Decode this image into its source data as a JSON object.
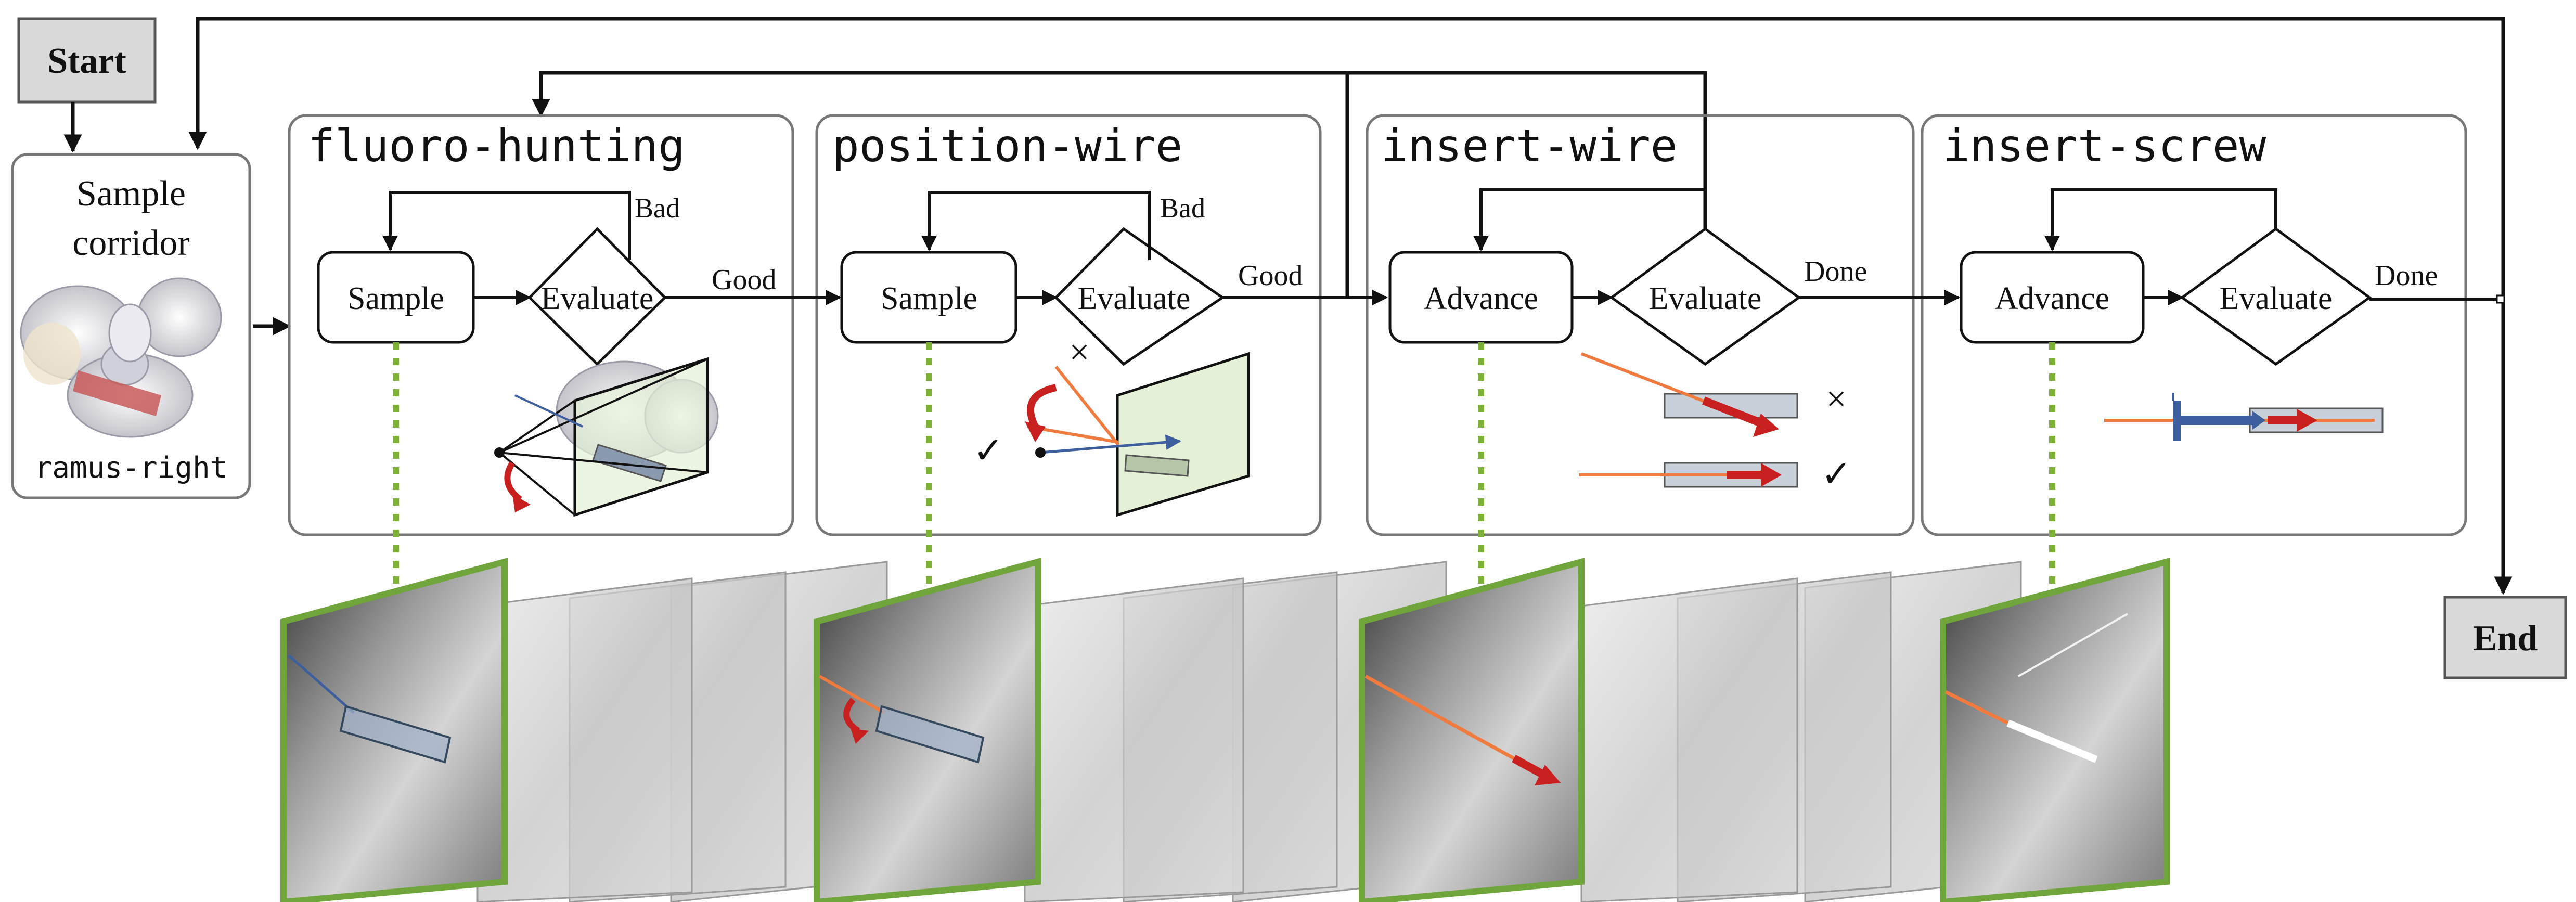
{
  "start": {
    "label": "Start"
  },
  "end": {
    "label": "End"
  },
  "sample_corridor": {
    "title_line1": "Sample",
    "title_line2": "corridor",
    "corridor_name": "ramus-right"
  },
  "stages": [
    {
      "title": "fluoro-hunting",
      "node_a": "Sample",
      "node_b": "Evaluate",
      "loop_label": "Bad",
      "exit_label": "Good"
    },
    {
      "title": "position-wire",
      "node_a": "Sample",
      "node_b": "Evaluate",
      "loop_label": "Bad",
      "exit_label": "Good"
    },
    {
      "title": "insert-wire",
      "node_a": "Advance",
      "node_b": "Evaluate",
      "exit_label": "Done"
    },
    {
      "title": "insert-screw",
      "node_a": "Advance",
      "node_b": "Evaluate",
      "exit_label": "Done"
    }
  ],
  "marks": {
    "cross": "×",
    "check": "✓"
  },
  "colors": {
    "line": "#111111",
    "stage_border": "#777777",
    "start_end_fill": "#d9d9d9",
    "green_frame": "#6fa53a",
    "green_dots": "#7fb03a",
    "wire_orange": "#f07b3f",
    "arrow_red": "#c8201e",
    "vector_blue": "#3d5f9e",
    "detector_green": "#e4f1d6"
  }
}
